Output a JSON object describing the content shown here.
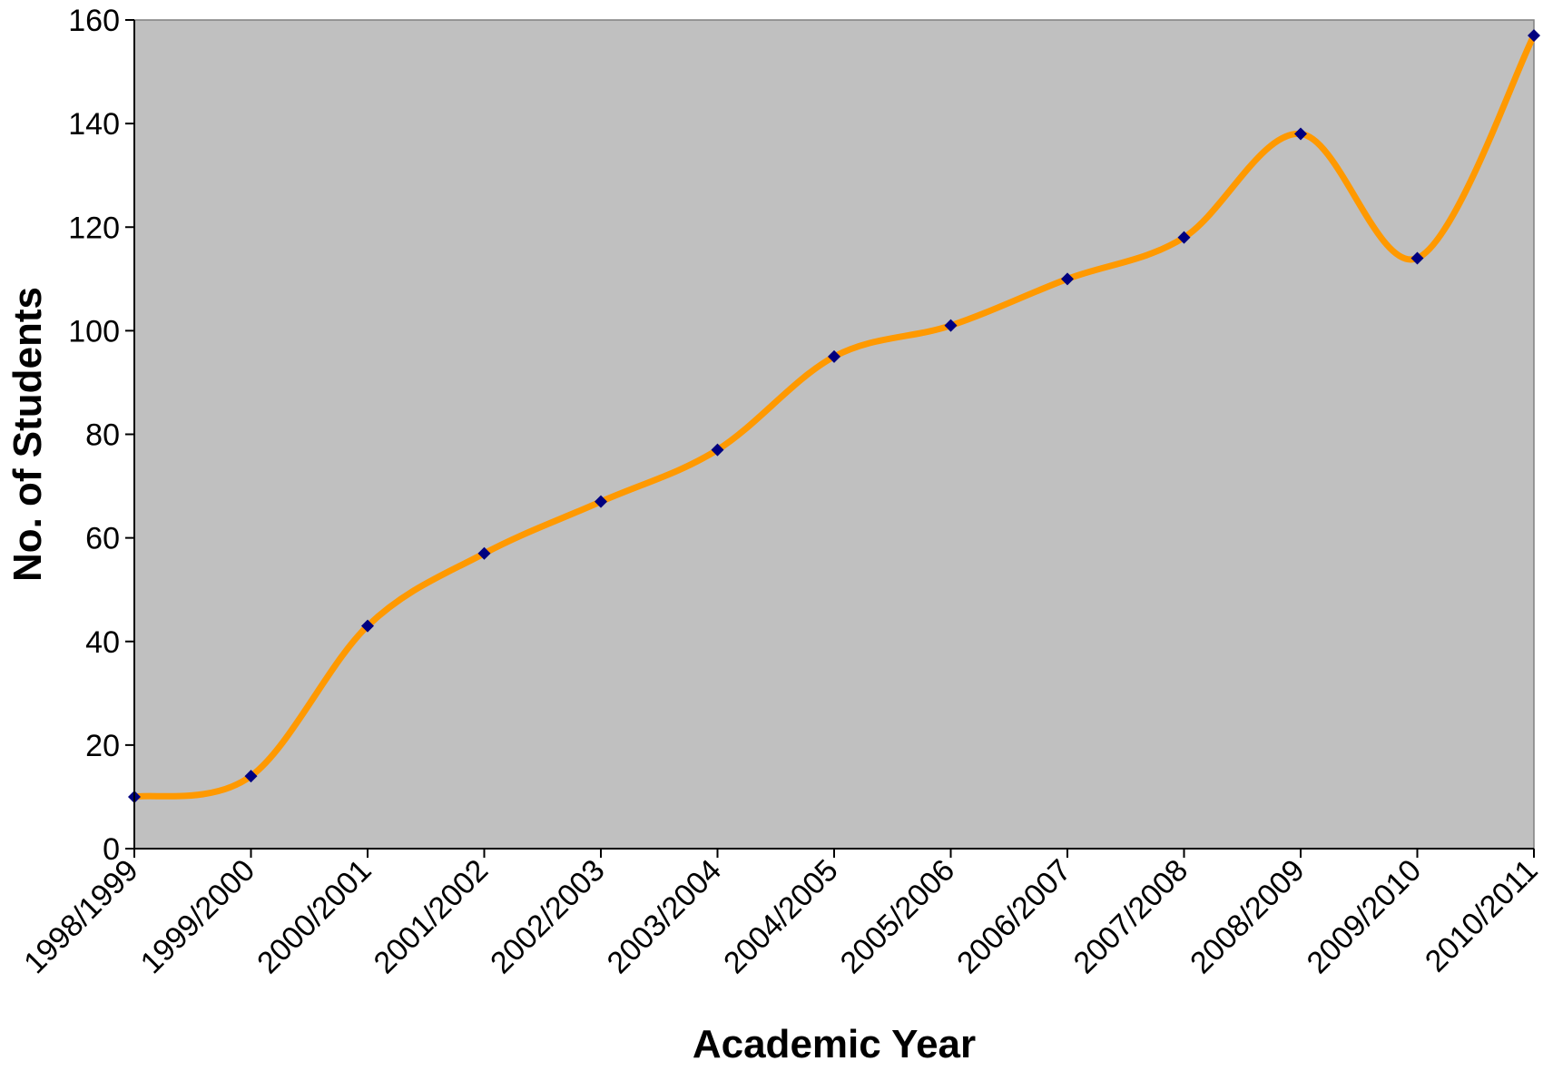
{
  "chart_data": {
    "type": "line",
    "title": "",
    "xlabel": "Academic Year",
    "ylabel": "No. of Students",
    "categories": [
      "1998/1999",
      "1999/2000",
      "2000/2001",
      "2001/2002",
      "2002/2003",
      "2003/2004",
      "2004/2005",
      "2005/2006",
      "2006/2007",
      "2007/2008",
      "2008/2009",
      "2009/2010",
      "2010/2011"
    ],
    "series": [
      {
        "values": [
          10,
          14,
          43,
          57,
          67,
          77,
          95,
          101,
          110,
          118,
          138,
          114,
          157
        ]
      }
    ],
    "ylim": [
      0,
      160
    ],
    "yticks": [
      0,
      20,
      40,
      60,
      80,
      100,
      120,
      140,
      160
    ],
    "smooth": true,
    "grid": false,
    "legend": "none",
    "colors": {
      "plot_background": "#c0c0c0",
      "line": "#ff9900",
      "marker": "#000080"
    }
  }
}
